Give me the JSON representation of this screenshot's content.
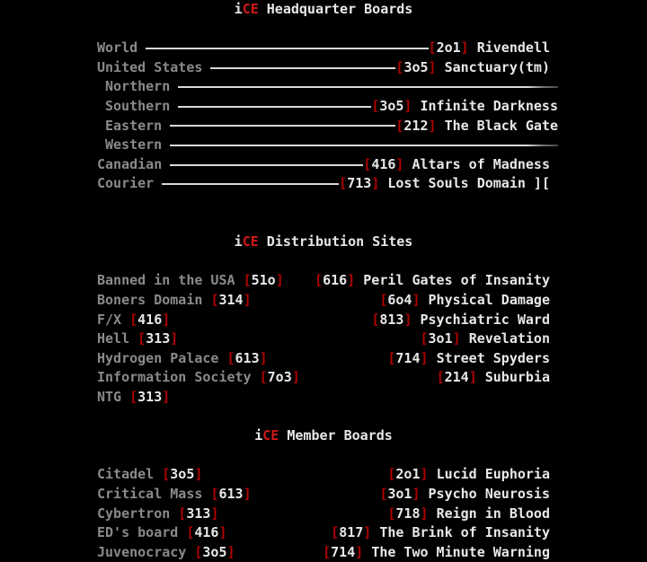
{
  "colors": {
    "background": "#000000",
    "text": "#e8e8e8",
    "accent": "#d01818",
    "bracket": "#b00000",
    "dim": "#8a8a8a"
  },
  "sections": {
    "hq": {
      "title": {
        "prefix": "i",
        "accent": "CE",
        "rest": " Headquarter Boards"
      },
      "entries": [
        {
          "region": "World",
          "code": "2o1",
          "board": "Rivendell"
        },
        {
          "region": "United States",
          "code": "3o5",
          "board": "Sanctuary(tm)"
        },
        {
          "region": "Northern",
          "code": "",
          "board": "",
          "indent": true
        },
        {
          "region": "Southern",
          "code": "3o5",
          "board": "Infinite Darkness",
          "indent": true
        },
        {
          "region": "Eastern",
          "code": "212",
          "board": "The Black Gate",
          "indent": true
        },
        {
          "region": "Western",
          "code": "",
          "board": "",
          "indent": true
        },
        {
          "region": "Canadian",
          "code": "416",
          "board": "Altars of Madness"
        },
        {
          "region": "Courier",
          "code": "713",
          "board": "Lost Souls Domain ]["
        }
      ]
    },
    "dist": {
      "title": {
        "prefix": "i",
        "accent": "CE",
        "rest": " Distribution Sites"
      },
      "left": [
        {
          "board": "Banned in the USA",
          "code": "51o"
        },
        {
          "board": "Boners Domain",
          "code": "314"
        },
        {
          "board": "F/X",
          "code": "416"
        },
        {
          "board": "Hell",
          "code": "313"
        },
        {
          "board": "Hydrogen Palace",
          "code": "613"
        },
        {
          "board": "Information Society",
          "code": "7o3"
        },
        {
          "board": "NTG",
          "code": "313"
        }
      ],
      "right": [
        {
          "code": "616",
          "board": "Peril Gates of Insanity"
        },
        {
          "code": "6o4",
          "board": "Physical Damage"
        },
        {
          "code": "813",
          "board": "Psychiatric Ward"
        },
        {
          "code": "3o1",
          "board": "Revelation"
        },
        {
          "code": "714",
          "board": "Street Spyders"
        },
        {
          "code": "214",
          "board": "Suburbia"
        }
      ]
    },
    "members": {
      "title": {
        "prefix": "i",
        "accent": "CE",
        "rest": " Member Boards"
      },
      "left": [
        {
          "board": "Citadel",
          "code": "3o5"
        },
        {
          "board": "Critical Mass",
          "code": "613"
        },
        {
          "board": "Cybertron",
          "code": "313"
        },
        {
          "board": "ED's board",
          "code": "416"
        },
        {
          "board": "Juvenocracy",
          "code": "3o5"
        }
      ],
      "right": [
        {
          "code": "2o1",
          "board": "Lucid Euphoria"
        },
        {
          "code": "3o1",
          "board": "Psycho Neurosis"
        },
        {
          "code": "718",
          "board": "Reign in Blood"
        },
        {
          "code": "817",
          "board": "The Brink of Insanity"
        },
        {
          "code": "714",
          "board": "The Two Minute Warning"
        }
      ]
    }
  }
}
